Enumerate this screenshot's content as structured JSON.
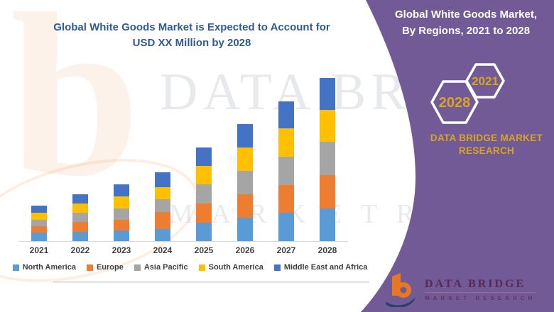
{
  "chart": {
    "title_line1": "Global White Goods Market is Expected to Account for",
    "title_line2": "USD XX Million by 2028",
    "title_color": "#2E5B97",
    "axis_line_color": "#D9D9D9",
    "label_color": "#404040"
  },
  "chart_data": {
    "type": "bar",
    "stacked": true,
    "title": "Global White Goods Market is Expected to Account for USD XX Million by 2028",
    "xlabel": "",
    "ylabel": "",
    "y_axis_visible": false,
    "grid": false,
    "legend_position": "bottom",
    "values_note": "relative units estimated from pixel heights; no numeric axis shown",
    "ylim": [
      0,
      250
    ],
    "categories": [
      "2021",
      "2022",
      "2023",
      "2024",
      "2025",
      "2026",
      "2027",
      "2028"
    ],
    "series": [
      {
        "name": "North America",
        "color": "#5B9BD5",
        "values": [
          12,
          13,
          15,
          17,
          26,
          33,
          40,
          46
        ]
      },
      {
        "name": "Europe",
        "color": "#ED7D31",
        "values": [
          9,
          14,
          15,
          24,
          27,
          33,
          39,
          47
        ]
      },
      {
        "name": "Asia Pacific",
        "color": "#A5A5A5",
        "values": [
          9,
          13,
          16,
          18,
          27,
          33,
          40,
          47
        ]
      },
      {
        "name": "South America",
        "color": "#FFC000",
        "values": [
          10,
          13,
          17,
          17,
          26,
          33,
          40,
          45
        ]
      },
      {
        "name": "Middle East and Africa",
        "color": "#4472C4",
        "values": [
          10,
          13,
          17,
          21,
          26,
          33,
          38,
          45
        ]
      }
    ],
    "totals_estimate": [
      50,
      66,
      80,
      97,
      132,
      165,
      197,
      230
    ]
  },
  "panel": {
    "title_line1": "Global White Goods Market,",
    "title_line2": "By Regions, 2021 to 2028",
    "hexagon_large_label": "2028",
    "hexagon_small_label": "2021",
    "brand_line1": "DATA BRIDGE MARKET",
    "brand_line2": "RESEARCH",
    "background_color": "#715A96",
    "gold_color": "#D9A420"
  },
  "footer_logo": {
    "mark_letter": "b",
    "brand": "DATA BRIDGE",
    "subtitle": "MARKET RESEARCH"
  },
  "watermark": {
    "logo_letter": "b",
    "row1": "DATA BRI",
    "row2": "M A R K E T  R E"
  }
}
